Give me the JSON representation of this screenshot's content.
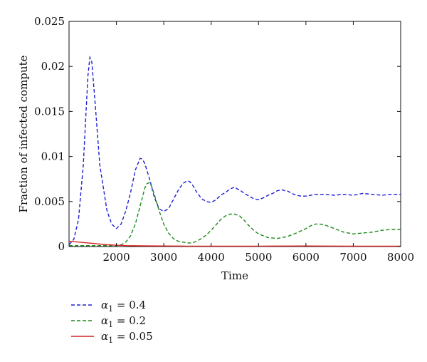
{
  "chart_data": {
    "type": "line",
    "xlabel": "Time",
    "ylabel": "Fraction of infected compute",
    "xlim": [
      1000,
      8000
    ],
    "ylim": [
      0,
      0.025
    ],
    "grid": false,
    "legend_position": "below",
    "x_ticks": [
      2000,
      3000,
      4000,
      5000,
      6000,
      7000,
      8000
    ],
    "x_tick_labels": [
      "2000",
      "3000",
      "4000",
      "5000",
      "6000",
      "7000",
      "8000"
    ],
    "y_ticks": [
      0,
      0.005,
      0.01,
      0.015,
      0.02,
      0.025
    ],
    "y_tick_labels": [
      "0",
      "0.005",
      "0.01",
      "0.015",
      "0.02",
      "0.025"
    ],
    "series": [
      {
        "name": "α1 = 0.4",
        "legend_symbol": "α",
        "legend_sub": "1",
        "legend_value": "= 0.4",
        "color": "#1f1fd6",
        "style": "dashed",
        "x": [
          1000,
          1100,
          1200,
          1300,
          1350,
          1400,
          1440,
          1480,
          1550,
          1650,
          1800,
          1900,
          2000,
          2100,
          2200,
          2300,
          2400,
          2500,
          2550,
          2600,
          2700,
          2800,
          2900,
          3000,
          3100,
          3200,
          3300,
          3400,
          3500,
          3550,
          3600,
          3700,
          3800,
          3900,
          4000,
          4100,
          4200,
          4300,
          4400,
          4500,
          4550,
          4600,
          4700,
          4800,
          4900,
          5000,
          5100,
          5200,
          5300,
          5400,
          5500,
          5550,
          5600,
          5700,
          5800,
          5900,
          6000,
          6200,
          6400,
          6600,
          6800,
          7000,
          7200,
          7400,
          7600,
          7800,
          8000
        ],
        "values": [
          0.0002,
          0.0008,
          0.003,
          0.009,
          0.014,
          0.019,
          0.021,
          0.0205,
          0.016,
          0.009,
          0.004,
          0.0025,
          0.002,
          0.0025,
          0.004,
          0.006,
          0.0085,
          0.0098,
          0.0097,
          0.0092,
          0.0075,
          0.0055,
          0.0042,
          0.0039,
          0.0042,
          0.0052,
          0.0062,
          0.007,
          0.0073,
          0.0072,
          0.0069,
          0.006,
          0.0053,
          0.005,
          0.0049,
          0.0052,
          0.0057,
          0.006,
          0.0064,
          0.0066,
          0.0064,
          0.0063,
          0.0059,
          0.0056,
          0.0053,
          0.0052,
          0.0054,
          0.0057,
          0.0059,
          0.0062,
          0.0063,
          0.0062,
          0.0062,
          0.0059,
          0.0057,
          0.0056,
          0.0056,
          0.0058,
          0.0058,
          0.0057,
          0.0058,
          0.0057,
          0.0059,
          0.0058,
          0.0057,
          0.0058,
          0.0058
        ]
      },
      {
        "name": "α1 = 0.2",
        "legend_symbol": "α",
        "legend_sub": "1",
        "legend_value": "= 0.2",
        "color": "#1a8a1a",
        "style": "dashed",
        "x": [
          1000,
          1500,
          1800,
          2000,
          2100,
          2200,
          2300,
          2400,
          2500,
          2550,
          2600,
          2650,
          2700,
          2750,
          2800,
          2900,
          3000,
          3100,
          3200,
          3300,
          3400,
          3500,
          3600,
          3700,
          3800,
          3900,
          4000,
          4100,
          4200,
          4300,
          4400,
          4500,
          4600,
          4700,
          4800,
          4900,
          5000,
          5200,
          5400,
          5600,
          5800,
          6000,
          6100,
          6200,
          6300,
          6400,
          6500,
          6600,
          6800,
          7000,
          7200,
          7400,
          7600,
          7800,
          8000
        ],
        "values": [
          0.0001,
          0.0001,
          0.0001,
          0.0001,
          0.0002,
          0.0005,
          0.0012,
          0.0025,
          0.0045,
          0.0055,
          0.0065,
          0.007,
          0.0071,
          0.0066,
          0.0058,
          0.004,
          0.0025,
          0.0015,
          0.0009,
          0.0006,
          0.0005,
          0.0004,
          0.0004,
          0.0006,
          0.0009,
          0.0013,
          0.0018,
          0.0024,
          0.003,
          0.0034,
          0.0036,
          0.0036,
          0.0034,
          0.0029,
          0.0023,
          0.0018,
          0.0014,
          0.001,
          0.0009,
          0.0011,
          0.0015,
          0.002,
          0.0023,
          0.0025,
          0.0025,
          0.0024,
          0.0022,
          0.002,
          0.0016,
          0.0014,
          0.0015,
          0.0016,
          0.0018,
          0.0019,
          0.0019
        ]
      },
      {
        "name": "α1 = 0.05",
        "legend_symbol": "α",
        "legend_sub": "1",
        "legend_value": "= 0.05",
        "color": "#d62020",
        "style": "solid",
        "x": [
          1000,
          1200,
          1400,
          1600,
          1800,
          2000,
          2200,
          2500,
          3000,
          3500,
          4000,
          5000,
          6000,
          7000,
          8000
        ],
        "values": [
          0.0006,
          0.0005,
          0.0004,
          0.0003,
          0.0002,
          0.00015,
          0.0001,
          8e-05,
          6e-05,
          5e-05,
          5e-05,
          5e-05,
          6e-05,
          5e-05,
          5e-05
        ]
      }
    ]
  }
}
